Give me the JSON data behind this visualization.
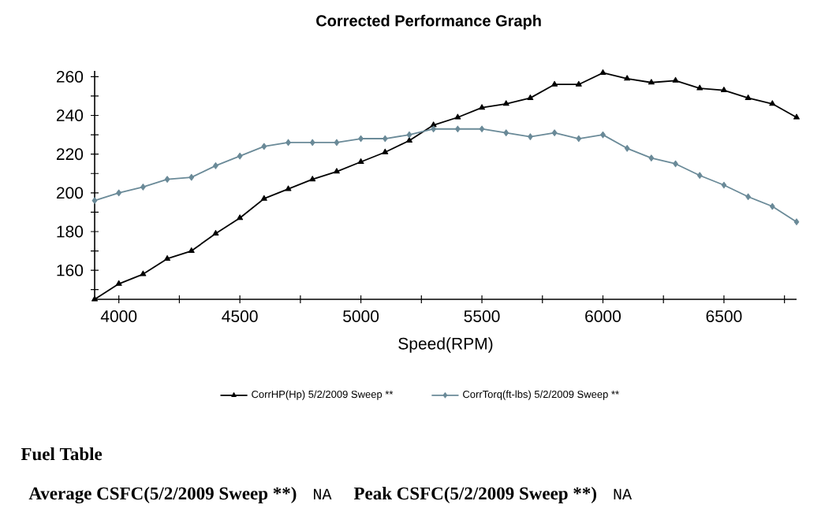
{
  "chart_data": {
    "type": "line",
    "title": "Corrected Performance Graph",
    "xlabel": "Speed(RPM)",
    "x": [
      3900,
      4000,
      4100,
      4200,
      4300,
      4400,
      4500,
      4600,
      4700,
      4800,
      4900,
      5000,
      5100,
      5200,
      5300,
      5400,
      5500,
      5600,
      5700,
      5800,
      5900,
      6000,
      6100,
      6200,
      6300,
      6400,
      6500,
      6600,
      6700,
      6800
    ],
    "series": [
      {
        "name": "CorrHP(Hp) 5/2/2009 Sweep **",
        "color": "#000000",
        "marker": "triangle",
        "values": [
          145,
          153,
          158,
          166,
          170,
          179,
          187,
          197,
          202,
          207,
          211,
          216,
          221,
          227,
          235,
          239,
          244,
          246,
          249,
          256,
          256,
          262,
          259,
          257,
          258,
          254,
          253,
          249,
          246,
          239
        ]
      },
      {
        "name": "CorrTorq(ft-lbs) 5/2/2009 Sweep **",
        "color": "#6a8a98",
        "marker": "diamond",
        "values": [
          196,
          200,
          203,
          207,
          208,
          214,
          219,
          224,
          226,
          226,
          226,
          228,
          228,
          230,
          233,
          233,
          233,
          231,
          229,
          231,
          228,
          230,
          223,
          218,
          215,
          209,
          204,
          198,
          193,
          185
        ]
      }
    ],
    "xlim": [
      3900,
      6800
    ],
    "ylim": [
      145,
      263
    ],
    "xticks": [
      4000,
      {
        "value": 4250,
        "label": null
      },
      4500,
      {
        "value": 4750,
        "label": null
      },
      5000,
      {
        "value": 5250,
        "label": null
      },
      5500,
      {
        "value": 5750,
        "label": null
      },
      6000,
      {
        "value": 6250,
        "label": null
      },
      6500,
      {
        "value": 6750,
        "label": null
      }
    ],
    "yticks": [
      {
        "value": 150,
        "label": null
      },
      160,
      {
        "value": 170,
        "label": null
      },
      180,
      {
        "value": 190,
        "label": null
      },
      200,
      {
        "value": 210,
        "label": null
      },
      220,
      {
        "value": 230,
        "label": null
      },
      240,
      {
        "value": 250,
        "label": null
      },
      260
    ],
    "legend": "bottom",
    "line_style": "solid",
    "annotations": [
      "Fuel Table",
      "Average CSFC(5/2/2009 Sweep **)",
      "NA",
      "Peak CSFC(5/2/2009 Sweep **)",
      "NA"
    ]
  }
}
